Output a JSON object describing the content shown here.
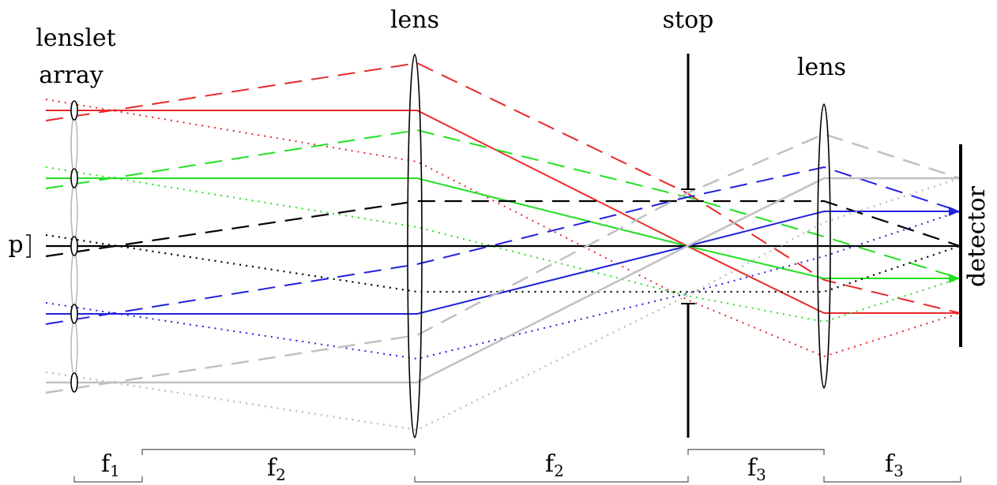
{
  "labels": {
    "lenslet_line1": "lenslet",
    "lenslet_line2": "array",
    "lens_left": "lens",
    "stop": "stop",
    "lens_right": "lens",
    "p": "p",
    "detector": "detector"
  },
  "dimensions": [
    {
      "name": "f1",
      "base": "f",
      "sub": "1"
    },
    {
      "name": "f2-first",
      "base": "f",
      "sub": "2"
    },
    {
      "name": "f2-second",
      "base": "f",
      "sub": "2"
    },
    {
      "name": "f3-first",
      "base": "f",
      "sub": "3"
    },
    {
      "name": "f3-second",
      "base": "f",
      "sub": "3"
    }
  ],
  "ray_colors": {
    "red": "#e8282a",
    "green": "#22e022",
    "black": "#000000",
    "blue": "#2222dd",
    "gray": "#c0c0c0"
  },
  "ray_styles": [
    "solid",
    "dashed",
    "dotted"
  ]
}
